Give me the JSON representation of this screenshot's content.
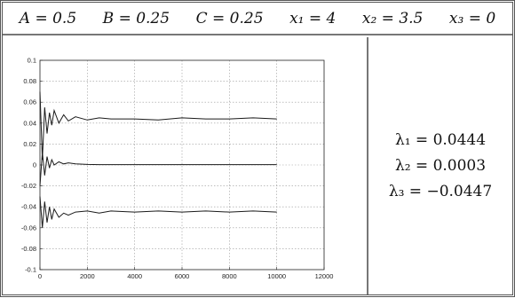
{
  "header": {
    "params": [
      "A = 0.5",
      "B = 0.25",
      "C = 0.25",
      "x₁ = 4",
      "x₂ = 3.5",
      "x₃ = 0"
    ]
  },
  "results": {
    "lambdas": [
      "λ₁ = 0.0444",
      "λ₂ = 0.0003",
      "λ₃ = −0.0447"
    ]
  },
  "chart_data": {
    "type": "line",
    "title": "",
    "xlabel": "",
    "ylabel": "",
    "xlim": [
      0,
      12000
    ],
    "ylim": [
      -0.1,
      0.1
    ],
    "grid": true,
    "xticks": [
      0,
      2000,
      4000,
      6000,
      8000,
      10000,
      12000
    ],
    "yticks": [
      0.1,
      0.08,
      0.06,
      0.04,
      0.02,
      0,
      -0.02,
      -0.04,
      -0.06,
      -0.08,
      -0.1
    ],
    "xtick_labels": [
      "0",
      "2000",
      "4000",
      "6000",
      "8000",
      "10000",
      "12000"
    ],
    "ytick_labels": [
      "0.1",
      "0.08",
      "0.06",
      "0.04",
      "0.02",
      "0",
      "-0.02",
      "-0.04",
      "-0.06",
      "-0.08",
      "-0.1"
    ],
    "series": [
      {
        "x": [
          0,
          100,
          200,
          300,
          400,
          500,
          600,
          800,
          1000,
          1200,
          1500,
          2000,
          2500,
          3000,
          4000,
          5000,
          6000,
          7000,
          8000,
          9000,
          10000
        ],
        "values": [
          0.07,
          0.005,
          0.055,
          0.03,
          0.05,
          0.038,
          0.052,
          0.04,
          0.048,
          0.042,
          0.046,
          0.043,
          0.045,
          0.044,
          0.044,
          0.043,
          0.045,
          0.044,
          0.044,
          0.045,
          0.044
        ]
      },
      {
        "x": [
          0,
          100,
          200,
          300,
          400,
          500,
          600,
          800,
          1000,
          1200,
          1500,
          2000,
          2500,
          3000,
          4000,
          5000,
          6000,
          7000,
          8000,
          9000,
          10000
        ],
        "values": [
          -0.02,
          0.012,
          -0.01,
          0.008,
          -0.003,
          0.005,
          0.0,
          0.003,
          0.001,
          0.002,
          0.001,
          0.0005,
          0.0003,
          0.0003,
          0.0003,
          0.0003,
          0.0003,
          0.0003,
          0.0003,
          0.0003,
          0.0003
        ]
      },
      {
        "x": [
          0,
          100,
          200,
          300,
          400,
          500,
          600,
          800,
          1000,
          1200,
          1500,
          2000,
          2500,
          3000,
          4000,
          5000,
          6000,
          7000,
          8000,
          9000,
          10000
        ],
        "values": [
          -0.03,
          -0.06,
          -0.035,
          -0.055,
          -0.04,
          -0.052,
          -0.042,
          -0.05,
          -0.046,
          -0.048,
          -0.045,
          -0.044,
          -0.046,
          -0.044,
          -0.045,
          -0.044,
          -0.045,
          -0.044,
          -0.045,
          -0.044,
          -0.045
        ]
      }
    ]
  }
}
